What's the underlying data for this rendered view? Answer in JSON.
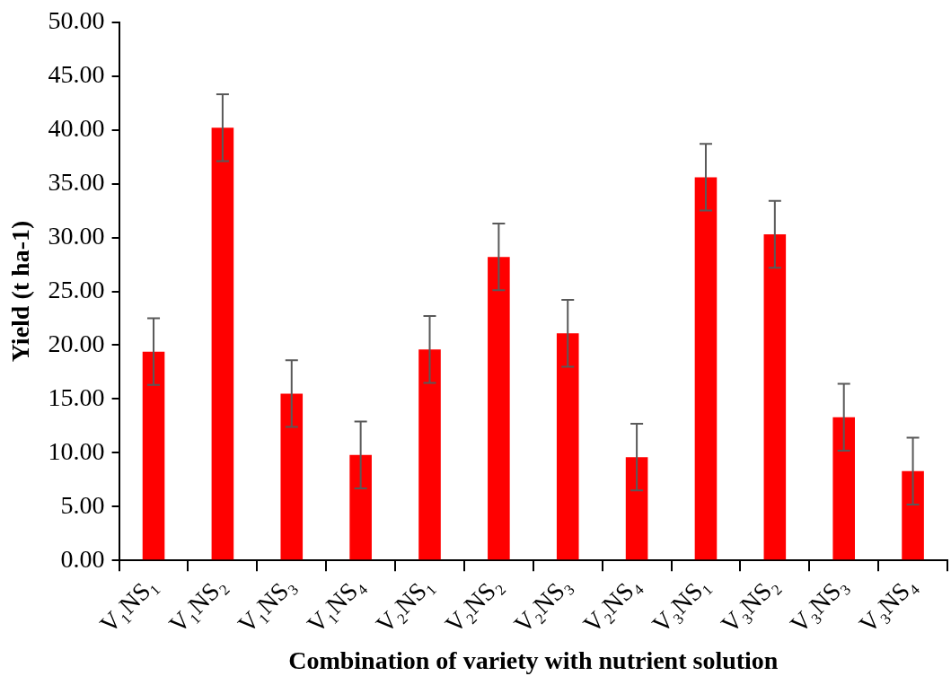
{
  "chart_data": {
    "type": "bar",
    "xlabel": "Combination of variety with nutrient solution",
    "ylabel": "Yield (t ha-1)",
    "categories": [
      "V₁NS₁",
      "V₁NS₂",
      "V₁NS₃",
      "V₁NS₄",
      "V₂NS₁",
      "V₂NS₂",
      "V₂NS₃",
      "V₂NS₄",
      "V₃NS₁",
      "V₃NS₂",
      "V₃NS₃",
      "V₃NS₄"
    ],
    "values": [
      19.4,
      40.2,
      15.5,
      9.8,
      19.6,
      28.2,
      21.1,
      9.6,
      35.6,
      30.3,
      13.3,
      8.3
    ],
    "errors": [
      3.1,
      3.1,
      3.1,
      3.1,
      3.1,
      3.1,
      3.1,
      3.1,
      3.1,
      3.1,
      3.1,
      3.1
    ],
    "color": "#ff0000",
    "ylim": [
      0,
      50
    ],
    "yticks": [
      {
        "value": 0,
        "label": "0.00"
      },
      {
        "value": 5,
        "label": "5.00"
      },
      {
        "value": 10,
        "label": "10.00"
      },
      {
        "value": 15,
        "label": "15.00"
      },
      {
        "value": 20,
        "label": "20.00"
      },
      {
        "value": 25,
        "label": "25.00"
      },
      {
        "value": 30,
        "label": "30.00"
      },
      {
        "value": 35,
        "label": "35.00"
      },
      {
        "value": 40,
        "label": "40.00"
      },
      {
        "value": 45,
        "label": "45.00"
      },
      {
        "value": 50,
        "label": "50.00"
      }
    ],
    "grid": false,
    "legend": false
  }
}
